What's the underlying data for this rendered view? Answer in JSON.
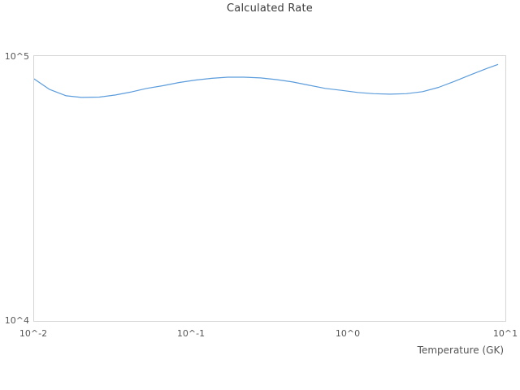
{
  "colors": {
    "background": "#ffffff",
    "plot_border": "#d5d5d5",
    "tick_text": "#555555",
    "title_text": "#3b3b3b",
    "line": "#5b9cdc"
  },
  "chart_data": {
    "type": "line",
    "title": "Calculated Rate",
    "xlabel": "Temperature (GK)",
    "ylabel": "",
    "x_scale": "log",
    "y_scale": "log",
    "xlim": [
      0.01,
      10
    ],
    "ylim": [
      10000,
      100000
    ],
    "x_ticks": [
      "10^-2",
      "10^-1",
      "10^0",
      "10^1"
    ],
    "y_ticks": [
      "10^4",
      "10^5"
    ],
    "grid": false,
    "legend_position": "none",
    "series": [
      {
        "name": "calculated-rate",
        "color": "#5b9cdc",
        "x": [
          0.01,
          0.0125,
          0.016,
          0.02,
          0.026,
          0.033,
          0.041,
          0.052,
          0.066,
          0.084,
          0.107,
          0.135,
          0.171,
          0.217,
          0.276,
          0.35,
          0.443,
          0.562,
          0.713,
          0.904,
          1.15,
          1.45,
          1.84,
          2.34,
          2.97,
          3.76,
          4.77,
          6.05,
          7.67,
          8.94
        ],
        "y": [
          82000,
          74900,
          70800,
          69800,
          70000,
          71300,
          73100,
          75500,
          77300,
          79500,
          81200,
          82400,
          83200,
          83200,
          82700,
          81500,
          79800,
          77600,
          75500,
          74200,
          72900,
          72100,
          71800,
          72100,
          73400,
          76200,
          80400,
          85100,
          89900,
          92900
        ]
      }
    ]
  }
}
